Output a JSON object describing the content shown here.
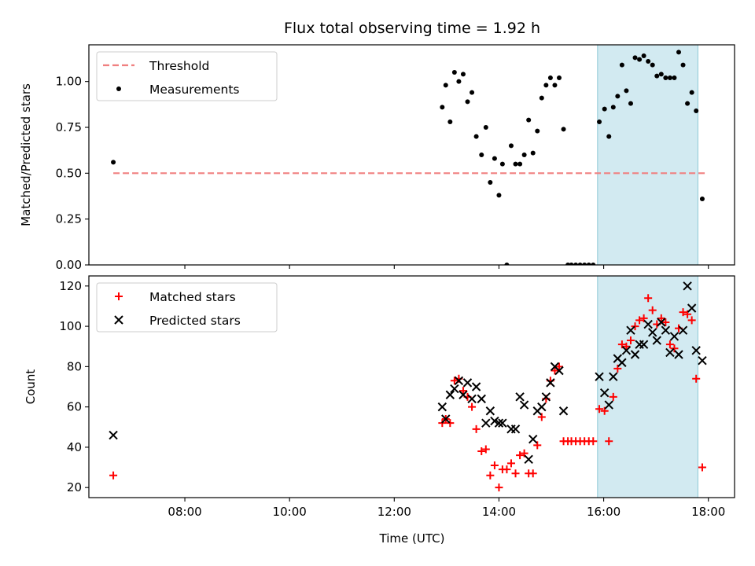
{
  "chart_data": [
    {
      "type": "scatter",
      "title": "Flux total observing time = 1.92 h",
      "xlabel": "",
      "ylabel": "Matched/Predicted stars",
      "xlim": [
        "06:10",
        "18:30"
      ],
      "ylim": [
        0,
        1.2
      ],
      "yticks": [
        "0.00",
        "0.25",
        "0.50",
        "0.75",
        "1.00"
      ],
      "ytick_values": [
        0,
        0.25,
        0.5,
        0.75,
        1.0
      ],
      "shaded_region": {
        "x": [
          "15:53",
          "17:48"
        ],
        "color": "#add8e6"
      },
      "threshold": {
        "name": "Threshold",
        "y": 0.5,
        "x": [
          "06:38",
          "17:56"
        ],
        "color": "#f08080",
        "style": "dashed"
      },
      "legend": {
        "location": "upper left",
        "entries": [
          "Threshold",
          "Measurements"
        ]
      },
      "series": [
        {
          "name": "Measurements",
          "color": "#000000",
          "marker": "dot",
          "points": [
            [
              "06:38",
              0.56
            ],
            [
              "12:55",
              0.86
            ],
            [
              "12:59",
              0.98
            ],
            [
              "13:04",
              0.78
            ],
            [
              "13:09",
              1.05
            ],
            [
              "13:14",
              1.0
            ],
            [
              "13:19",
              1.04
            ],
            [
              "13:24",
              0.89
            ],
            [
              "13:29",
              0.94
            ],
            [
              "13:34",
              0.7
            ],
            [
              "13:40",
              0.6
            ],
            [
              "13:45",
              0.75
            ],
            [
              "13:50",
              0.45
            ],
            [
              "13:55",
              0.58
            ],
            [
              "14:00",
              0.38
            ],
            [
              "14:04",
              0.55
            ],
            [
              "14:09",
              0.0
            ],
            [
              "14:14",
              0.65
            ],
            [
              "14:19",
              0.55
            ],
            [
              "14:24",
              0.55
            ],
            [
              "14:29",
              0.6
            ],
            [
              "14:34",
              0.79
            ],
            [
              "14:39",
              0.61
            ],
            [
              "14:44",
              0.73
            ],
            [
              "14:49",
              0.91
            ],
            [
              "14:54",
              0.98
            ],
            [
              "14:59",
              1.02
            ],
            [
              "15:04",
              0.98
            ],
            [
              "15:09",
              1.02
            ],
            [
              "15:14",
              0.74
            ],
            [
              "15:19",
              0.0
            ],
            [
              "15:23",
              0.0
            ],
            [
              "15:28",
              0.0
            ],
            [
              "15:33",
              0.0
            ],
            [
              "15:38",
              0.0
            ],
            [
              "15:43",
              0.0
            ],
            [
              "15:48",
              0.0
            ],
            [
              "15:55",
              0.78
            ],
            [
              "16:01",
              0.85
            ],
            [
              "16:06",
              0.7
            ],
            [
              "16:11",
              0.86
            ],
            [
              "16:16",
              0.92
            ],
            [
              "16:21",
              1.09
            ],
            [
              "16:26",
              0.95
            ],
            [
              "16:31",
              0.88
            ],
            [
              "16:36",
              1.13
            ],
            [
              "16:41",
              1.12
            ],
            [
              "16:46",
              1.14
            ],
            [
              "16:51",
              1.11
            ],
            [
              "16:56",
              1.09
            ],
            [
              "17:01",
              1.03
            ],
            [
              "17:06",
              1.04
            ],
            [
              "17:11",
              1.02
            ],
            [
              "17:16",
              1.02
            ],
            [
              "17:21",
              1.02
            ],
            [
              "17:26",
              1.16
            ],
            [
              "17:31",
              1.09
            ],
            [
              "17:36",
              0.88
            ],
            [
              "17:41",
              0.94
            ],
            [
              "17:46",
              0.84
            ],
            [
              "17:53",
              0.36
            ]
          ]
        }
      ]
    },
    {
      "type": "scatter",
      "title": "",
      "xlabel": "Time (UTC)",
      "ylabel": "Count",
      "xlim": [
        "06:10",
        "18:30"
      ],
      "ylim": [
        15,
        125
      ],
      "xticks": [
        "08:00",
        "10:00",
        "12:00",
        "14:00",
        "16:00",
        "18:00"
      ],
      "yticks": [
        "20",
        "40",
        "60",
        "80",
        "100",
        "120"
      ],
      "ytick_values": [
        20,
        40,
        60,
        80,
        100,
        120
      ],
      "shaded_region": {
        "x": [
          "15:53",
          "17:48"
        ],
        "color": "#add8e6"
      },
      "legend": {
        "location": "upper left",
        "entries": [
          "Matched stars",
          "Predicted stars"
        ]
      },
      "series": [
        {
          "name": "Matched stars",
          "color": "#ff0000",
          "marker": "plus",
          "points": [
            [
              "06:38",
              26
            ],
            [
              "12:55",
              52
            ],
            [
              "12:59",
              54
            ],
            [
              "13:04",
              52
            ],
            [
              "13:09",
              73
            ],
            [
              "13:14",
              74
            ],
            [
              "13:19",
              68
            ],
            [
              "13:24",
              65
            ],
            [
              "13:29",
              60
            ],
            [
              "13:34",
              49
            ],
            [
              "13:40",
              38
            ],
            [
              "13:45",
              39
            ],
            [
              "13:50",
              26
            ],
            [
              "13:55",
              31
            ],
            [
              "14:00",
              20
            ],
            [
              "14:04",
              29
            ],
            [
              "14:09",
              29
            ],
            [
              "14:14",
              32
            ],
            [
              "14:19",
              27
            ],
            [
              "14:24",
              36
            ],
            [
              "14:29",
              37
            ],
            [
              "14:34",
              27
            ],
            [
              "14:39",
              27
            ],
            [
              "14:44",
              41
            ],
            [
              "14:49",
              55
            ],
            [
              "14:54",
              64
            ],
            [
              "14:59",
              73
            ],
            [
              "15:04",
              78
            ],
            [
              "15:09",
              80
            ],
            [
              "15:14",
              43
            ],
            [
              "15:19",
              43
            ],
            [
              "15:23",
              43
            ],
            [
              "15:28",
              43
            ],
            [
              "15:33",
              43
            ],
            [
              "15:38",
              43
            ],
            [
              "15:43",
              43
            ],
            [
              "15:48",
              43
            ],
            [
              "15:55",
              59
            ],
            [
              "16:01",
              58
            ],
            [
              "16:06",
              43
            ],
            [
              "16:11",
              65
            ],
            [
              "16:16",
              79
            ],
            [
              "16:21",
              91
            ],
            [
              "16:26",
              90
            ],
            [
              "16:31",
              93
            ],
            [
              "16:36",
              100
            ],
            [
              "16:41",
              103
            ],
            [
              "16:46",
              104
            ],
            [
              "16:51",
              114
            ],
            [
              "16:56",
              108
            ],
            [
              "17:01",
              101
            ],
            [
              "17:06",
              104
            ],
            [
              "17:11",
              102
            ],
            [
              "17:16",
              91
            ],
            [
              "17:21",
              89
            ],
            [
              "17:26",
              99
            ],
            [
              "17:31",
              107
            ],
            [
              "17:36",
              106
            ],
            [
              "17:41",
              103
            ],
            [
              "17:46",
              74
            ],
            [
              "17:53",
              30
            ]
          ]
        },
        {
          "name": "Predicted stars",
          "color": "#000000",
          "marker": "x",
          "points": [
            [
              "06:38",
              46
            ],
            [
              "12:55",
              60
            ],
            [
              "12:59",
              54
            ],
            [
              "13:04",
              66
            ],
            [
              "13:09",
              69
            ],
            [
              "13:14",
              73
            ],
            [
              "13:19",
              66
            ],
            [
              "13:24",
              72
            ],
            [
              "13:29",
              64
            ],
            [
              "13:34",
              70
            ],
            [
              "13:40",
              64
            ],
            [
              "13:45",
              52
            ],
            [
              "13:50",
              58
            ],
            [
              "13:55",
              53
            ],
            [
              "14:00",
              52
            ],
            [
              "14:04",
              52
            ],
            [
              "14:14",
              49
            ],
            [
              "14:19",
              49
            ],
            [
              "14:24",
              65
            ],
            [
              "14:29",
              61
            ],
            [
              "14:34",
              34
            ],
            [
              "14:39",
              44
            ],
            [
              "14:44",
              58
            ],
            [
              "14:49",
              60
            ],
            [
              "14:54",
              65
            ],
            [
              "14:59",
              72
            ],
            [
              "15:04",
              80
            ],
            [
              "15:09",
              78
            ],
            [
              "15:14",
              58
            ],
            [
              "15:55",
              75
            ],
            [
              "16:01",
              67
            ],
            [
              "16:06",
              61
            ],
            [
              "16:11",
              75
            ],
            [
              "16:16",
              84
            ],
            [
              "16:21",
              82
            ],
            [
              "16:26",
              88
            ],
            [
              "16:31",
              98
            ],
            [
              "16:36",
              86
            ],
            [
              "16:41",
              91
            ],
            [
              "16:46",
              91
            ],
            [
              "16:51",
              101
            ],
            [
              "16:56",
              97
            ],
            [
              "17:01",
              93
            ],
            [
              "17:06",
              102
            ],
            [
              "17:11",
              98
            ],
            [
              "17:16",
              87
            ],
            [
              "17:21",
              95
            ],
            [
              "17:26",
              86
            ],
            [
              "17:31",
              98
            ],
            [
              "17:36",
              120
            ],
            [
              "17:41",
              109
            ],
            [
              "17:46",
              88
            ],
            [
              "17:53",
              83
            ]
          ]
        }
      ]
    }
  ]
}
